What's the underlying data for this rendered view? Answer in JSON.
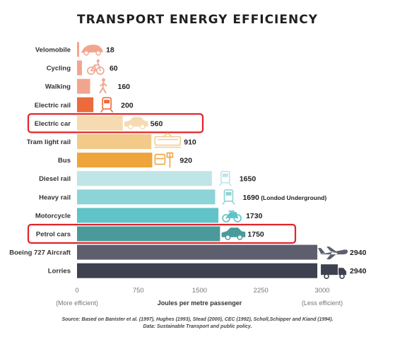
{
  "chart_data": {
    "type": "bar",
    "orientation": "horizontal",
    "title": "TRANSPORT ENERGY EFFICIENCY",
    "xlabel": "Joules per metre passenger",
    "xlim": [
      0,
      3000
    ],
    "xticks": [
      "0",
      "750",
      "1500",
      "2250",
      "3000"
    ],
    "left_note": "(More efficient)",
    "right_note": "(Less efficient)",
    "categories": [
      "Velomobile",
      "Cycling",
      "Walking",
      "Electric rail",
      "Electric car",
      "Tram light rail",
      "Bus",
      "Diesel rail",
      "Heavy rail",
      "Motorcycle",
      "Petrol cars",
      "Boeing 727 Aircraft",
      "Lorries"
    ],
    "values": [
      18,
      60,
      160,
      200,
      560,
      910,
      920,
      1650,
      1690,
      1730,
      1750,
      2940,
      2940
    ],
    "value_labels": [
      "18",
      "60",
      "160",
      "200",
      "560",
      "910",
      "920",
      "1650",
      "1690",
      "1730",
      "1750",
      "2940",
      "2940"
    ],
    "value_notes": [
      "",
      "",
      "",
      "",
      "",
      "",
      "",
      "",
      "(Londod Underground)",
      "",
      "",
      "",
      ""
    ],
    "colors": [
      "#f2a58e",
      "#f2a58e",
      "#f2a58e",
      "#ec6a3c",
      "#f6dbb2",
      "#f3ca8a",
      "#efa43c",
      "#bfe5e6",
      "#8dd4d6",
      "#5fc3c8",
      "#4a9a9c",
      "#5d5f6e",
      "#3e4150"
    ],
    "icon_colors": [
      "#f2a58e",
      "#f2a58e",
      "#f2a58e",
      "#ec6a3c",
      "#f6dbb2",
      "#f3ca8a",
      "#efa43c",
      "#bfe5e6",
      "#8dd4d6",
      "#5fc3c8",
      "#4a9a9c",
      "#5d5f6e",
      "#3e4150"
    ],
    "icons": [
      "velomobile-icon",
      "bicycle-icon",
      "walking-person-icon",
      "train-icon",
      "car-icon",
      "tram-icon",
      "bus-stop-icon",
      "train-icon",
      "train-icon",
      "motorcycle-icon",
      "car-icon",
      "airplane-icon",
      "truck-icon"
    ],
    "highlighted": [
      "Electric car",
      "Petrol cars"
    ],
    "highlight_color": "#e0242a",
    "grid": false
  },
  "source": {
    "line1": "Source: Based on Banister et al. (1997), Hughes (1993), Stead (2000), CEC (1992), Scholl,Schipper and Kiand (1994).",
    "line2": "Data: Sustainable Transport and public policy."
  }
}
